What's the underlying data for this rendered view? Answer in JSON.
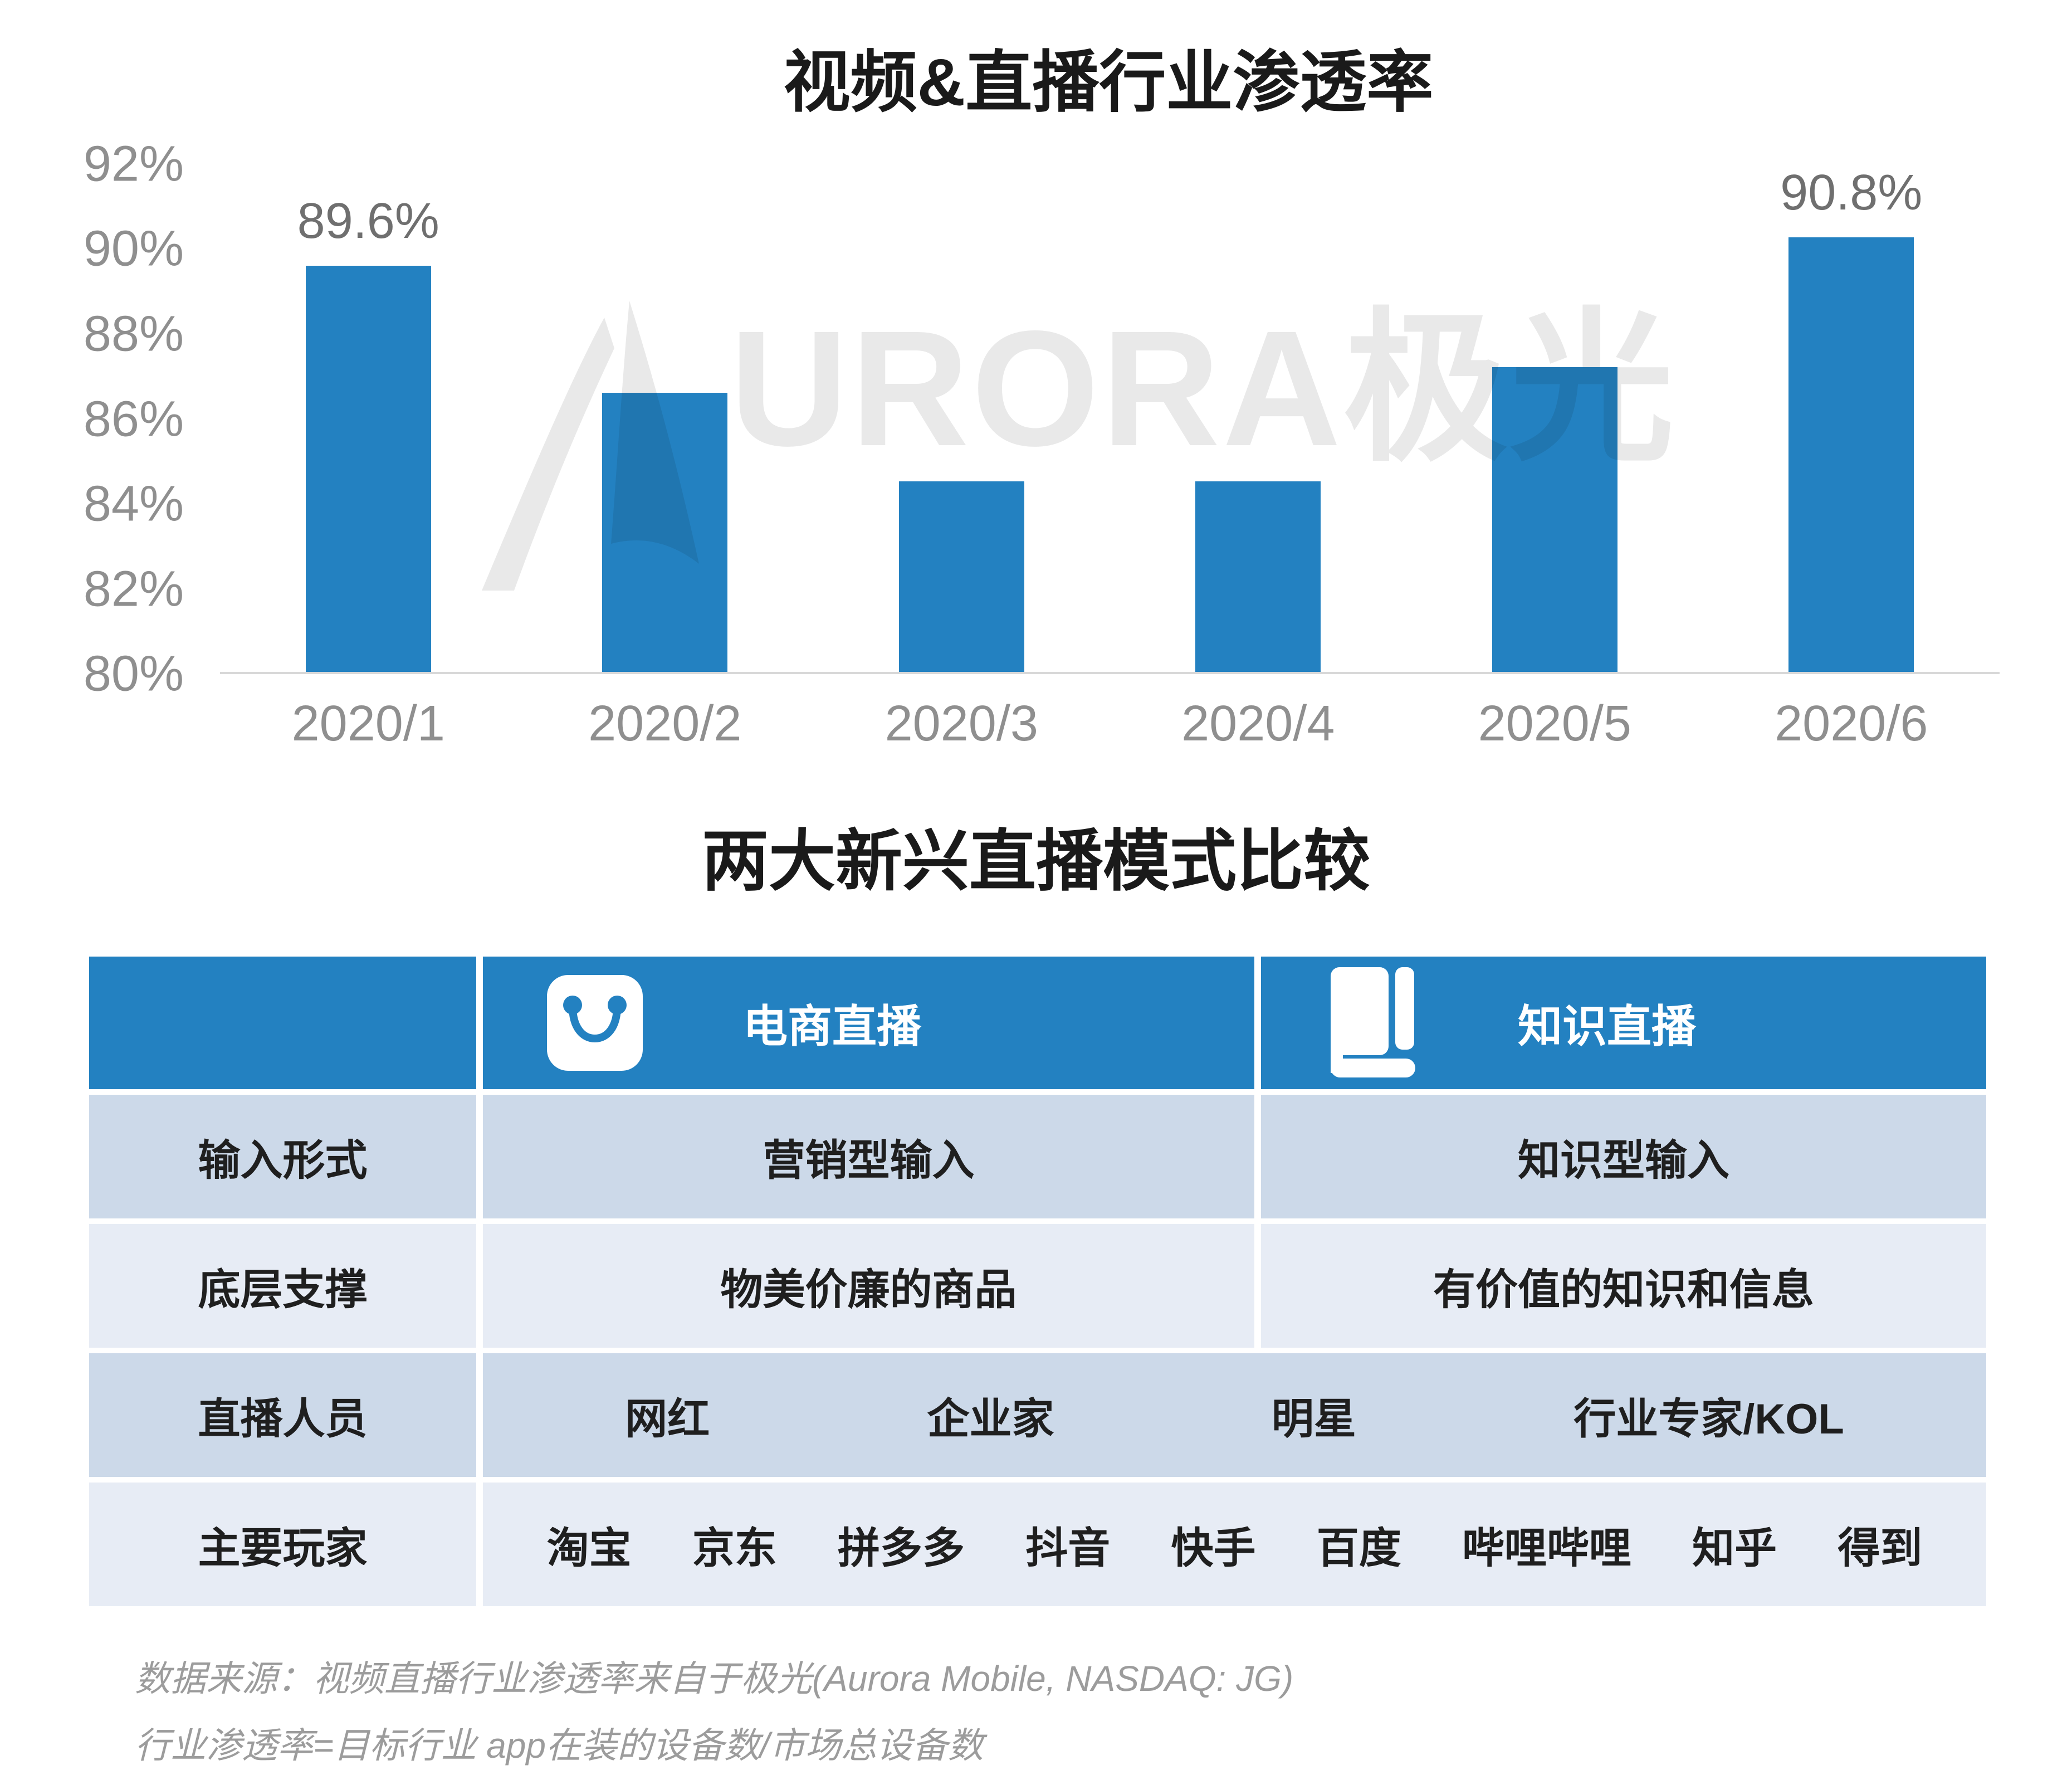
{
  "theme": {
    "accent": "#2381c1",
    "row_dark": "#ccd9e9",
    "row_light": "#e7ecf5",
    "axis_text": "#8f8f8f",
    "value_text": "#6f6f6f",
    "footer_text": "#9c9c9c",
    "watermark": "#e9e9e9"
  },
  "chart_data": {
    "type": "bar",
    "title": "视频&直播行业渗透率",
    "categories": [
      "2020/1",
      "2020/2",
      "2020/3",
      "2020/4",
      "2020/5",
      "2020/6"
    ],
    "values": [
      89.6,
      86.6,
      84.5,
      84.5,
      87.2,
      90.8
    ],
    "point_labels": [
      "89.6%",
      "",
      "",
      "",
      "",
      "90.8%"
    ],
    "yticks": [
      "92%",
      "90%",
      "88%",
      "86%",
      "84%",
      "82%",
      "80%"
    ],
    "ylim": [
      80,
      92
    ],
    "xlabel": "",
    "ylabel": "",
    "grid": false,
    "legend": "none",
    "bar_color": "#2381c1"
  },
  "watermark": {
    "text": "URORA极光",
    "logo": "aurora-swoosh-logo"
  },
  "table": {
    "title": "两大新兴直播模式比较",
    "header": {
      "col1": "",
      "col2": {
        "icon": "shopping-bag-icon",
        "label": "电商直播"
      },
      "col3": {
        "icon": "book-icon",
        "label": "知识直播"
      }
    },
    "rows": [
      {
        "label": "输入形式",
        "col2": "营销型输入",
        "col3": "知识型输入"
      },
      {
        "label": "底层支撑",
        "col2": "物美价廉的商品",
        "col3": "有价值的知识和信息"
      },
      {
        "label": "直播人员",
        "items": [
          "网红",
          "企业家",
          "明星",
          "行业专家/KOL"
        ]
      },
      {
        "label": "主要玩家",
        "items": [
          "淘宝",
          "京东",
          "拼多多",
          "抖音",
          "快手",
          "百度",
          "哔哩哔哩",
          "知乎",
          "得到"
        ]
      }
    ]
  },
  "footer": {
    "line1": "数据来源：视频直播行业渗透率来自于极光(Aurora Mobile, NASDAQ: JG)",
    "line2": "行业渗透率=目标行业 app在装的设备数/市场总设备数"
  }
}
